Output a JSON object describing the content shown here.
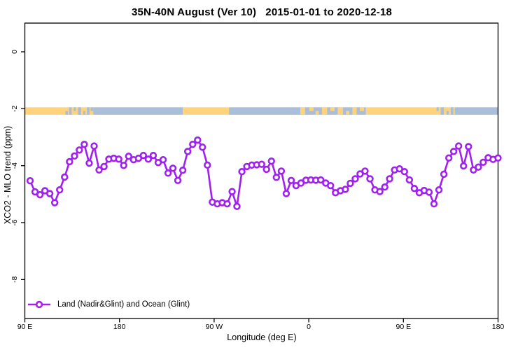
{
  "title": "35N-40N August (Ver 10)   2015-01-01 to 2020-12-18",
  "axes": {
    "x_label": "Longitude (deg E)",
    "y_label": "XCO2 - MLO trend (ppm)"
  },
  "legend": {
    "label": "Land (Nadir&Glint) and Ocean (Glint)",
    "marker": "open-circle-on-line",
    "color": "#A020F0"
  },
  "colors": {
    "series": "#A020F0",
    "land_band": "#FFD37E",
    "ocean_band": "#A8BED9",
    "axis": "#000000",
    "background": "#FFFFFF"
  },
  "chart_data": {
    "type": "line",
    "title": "35N-40N August (Ver 10)   2015-01-01 to 2020-12-18",
    "xlabel": "Longitude (deg E)",
    "ylabel": "XCO2 - MLO trend (ppm)",
    "x_unit": "longitude unwrapped eastward from 90E to 180 (90..540 deg E); tick labels repeat modulo 360",
    "xlim": [
      90,
      540.3
    ],
    "ylim": [
      -9.4,
      1.0
    ],
    "grid": false,
    "legend_position": "bottom-left-inside",
    "x_ticks": [
      {
        "pos": 90,
        "label": "90 E"
      },
      {
        "pos": 180,
        "label": "180"
      },
      {
        "pos": 270,
        "label": "90 W"
      },
      {
        "pos": 360,
        "label": "0"
      },
      {
        "pos": 450,
        "label": "90 E"
      },
      {
        "pos": 540,
        "label": "180"
      }
    ],
    "y_ticks": [
      0,
      -2,
      -4,
      -6,
      -8
    ],
    "series": [
      {
        "name": "Land (Nadir&Glint) and Ocean (Glint)",
        "color": "#A020F0",
        "marker": "open-circle",
        "x": [
          95.0,
          99.7,
          104.4,
          109.1,
          113.7,
          118.4,
          123.1,
          127.8,
          132.5,
          137.2,
          141.8,
          146.5,
          151.2,
          155.9,
          160.6,
          165.3,
          169.9,
          174.6,
          179.3,
          184.0,
          188.7,
          193.4,
          198.1,
          202.7,
          207.4,
          212.1,
          216.8,
          221.5,
          226.2,
          230.8,
          235.5,
          240.2,
          244.9,
          249.6,
          254.3,
          258.9,
          263.6,
          268.3,
          273.0,
          277.7,
          282.4,
          287.1,
          291.7,
          296.4,
          301.1,
          305.8,
          310.5,
          315.2,
          319.8,
          324.5,
          329.2,
          333.9,
          338.6,
          343.3,
          347.9,
          352.6,
          357.3,
          362.0,
          366.7,
          371.4,
          376.1,
          380.7,
          385.4,
          390.1,
          394.8,
          399.5,
          404.2,
          408.8,
          413.5,
          418.2,
          422.9,
          427.6,
          432.3,
          436.9,
          441.6,
          446.3,
          451.0,
          455.7,
          460.4,
          465.1,
          469.7,
          474.4,
          479.1,
          483.8,
          488.5,
          493.2,
          497.8,
          502.5,
          507.2,
          511.9,
          516.6,
          521.3,
          525.9,
          530.6,
          535.3,
          540.0
        ],
        "y": [
          -4.53,
          -4.92,
          -5.02,
          -4.88,
          -4.98,
          -5.3,
          -4.85,
          -4.4,
          -3.86,
          -3.66,
          -3.45,
          -3.25,
          -3.91,
          -3.31,
          -4.15,
          -4.03,
          -3.77,
          -3.74,
          -3.77,
          -3.99,
          -3.67,
          -3.79,
          -3.74,
          -3.64,
          -3.77,
          -3.64,
          -3.89,
          -3.79,
          -4.26,
          -4.09,
          -4.52,
          -4.16,
          -3.5,
          -3.25,
          -3.1,
          -3.35,
          -3.98,
          -5.28,
          -5.34,
          -5.3,
          -5.34,
          -4.91,
          -5.43,
          -4.21,
          -4.03,
          -3.98,
          -3.97,
          -3.95,
          -4.13,
          -3.84,
          -4.41,
          -4.19,
          -4.98,
          -4.52,
          -4.7,
          -4.61,
          -4.51,
          -4.5,
          -4.51,
          -4.5,
          -4.61,
          -4.7,
          -4.95,
          -4.88,
          -4.83,
          -4.62,
          -4.46,
          -4.29,
          -4.19,
          -4.46,
          -4.85,
          -4.91,
          -4.75,
          -4.46,
          -4.15,
          -4.11,
          -4.21,
          -4.5,
          -4.8,
          -4.95,
          -4.87,
          -4.93,
          -5.34,
          -4.85,
          -4.3,
          -3.73,
          -3.5,
          -3.31,
          -4.01,
          -3.33,
          -4.15,
          -4.05,
          -3.88,
          -3.72,
          -3.78,
          -3.73
        ]
      }
    ],
    "land_ocean_band": {
      "description": "horizontal strip map of 35N-40N latitude band: land vs ocean along longitude",
      "y_top": -1.95,
      "y_bottom": -2.21,
      "land_color": "#FFD37E",
      "ocean_color": "#A8BED9",
      "segments": [
        {
          "from": 90,
          "to": 155,
          "type": "land"
        },
        {
          "from": 155,
          "to": 240.2,
          "type": "ocean"
        },
        {
          "from": 240.2,
          "to": 284.1,
          "type": "land"
        },
        {
          "from": 284.1,
          "to": 414.4,
          "type": "ocean"
        },
        {
          "from": 414.4,
          "to": 498.8,
          "type": "land"
        },
        {
          "from": 498.8,
          "to": 540.3,
          "type": "ocean"
        }
      ],
      "patches": [
        {
          "from": 128.5,
          "to": 131.0,
          "type": "ocean",
          "extent": "bottom"
        },
        {
          "from": 132.0,
          "to": 134.5,
          "type": "ocean",
          "extent": "full"
        },
        {
          "from": 136.5,
          "to": 138.5,
          "type": "ocean",
          "extent": "top"
        },
        {
          "from": 140.5,
          "to": 143.5,
          "type": "ocean",
          "extent": "full"
        },
        {
          "from": 145.5,
          "to": 147.5,
          "type": "ocean",
          "extent": "bottom"
        },
        {
          "from": 149.0,
          "to": 151.5,
          "type": "ocean",
          "extent": "full"
        },
        {
          "from": 152.5,
          "to": 155.0,
          "type": "ocean",
          "extent": "top"
        },
        {
          "from": 352.0,
          "to": 356.5,
          "type": "land",
          "extent": "full"
        },
        {
          "from": 360.5,
          "to": 364.5,
          "type": "land",
          "extent": "top"
        },
        {
          "from": 366.5,
          "to": 369.5,
          "type": "land",
          "extent": "bottom"
        },
        {
          "from": 372.5,
          "to": 377.5,
          "type": "land",
          "extent": "full"
        },
        {
          "from": 380.5,
          "to": 384.5,
          "type": "land",
          "extent": "top"
        },
        {
          "from": 387.5,
          "to": 392.5,
          "type": "land",
          "extent": "full"
        },
        {
          "from": 395.5,
          "to": 398.5,
          "type": "land",
          "extent": "bottom"
        },
        {
          "from": 401.5,
          "to": 405.5,
          "type": "land",
          "extent": "full"
        },
        {
          "from": 408.5,
          "to": 412.5,
          "type": "land",
          "extent": "top"
        },
        {
          "from": 481.5,
          "to": 483.5,
          "type": "ocean",
          "extent": "top"
        },
        {
          "from": 485.5,
          "to": 488.5,
          "type": "ocean",
          "extent": "full"
        },
        {
          "from": 491.0,
          "to": 493.0,
          "type": "ocean",
          "extent": "bottom"
        },
        {
          "from": 495.0,
          "to": 497.5,
          "type": "ocean",
          "extent": "full"
        }
      ]
    }
  }
}
